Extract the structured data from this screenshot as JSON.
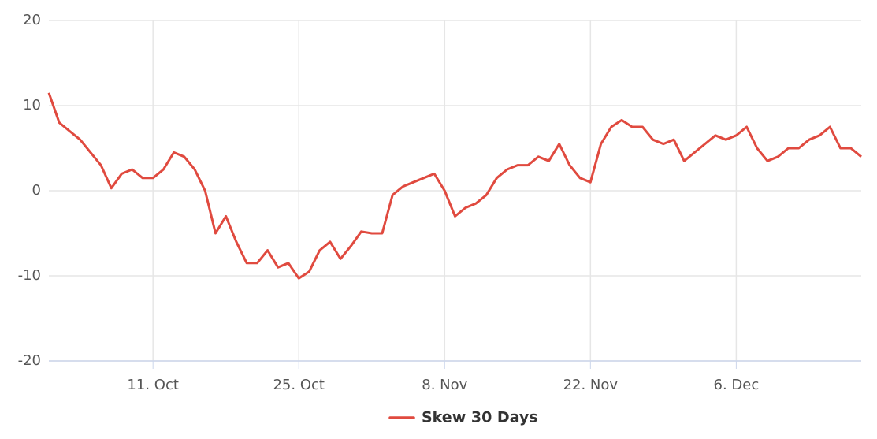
{
  "chart_data": {
    "type": "line",
    "categories": [
      null,
      null,
      null,
      null,
      null,
      null,
      null,
      null,
      null,
      null,
      "11. Oct",
      null,
      null,
      null,
      null,
      null,
      null,
      null,
      null,
      null,
      null,
      null,
      null,
      null,
      "25. Oct",
      null,
      null,
      null,
      null,
      null,
      null,
      null,
      null,
      null,
      null,
      null,
      null,
      null,
      "8. Nov",
      null,
      null,
      null,
      null,
      null,
      null,
      null,
      null,
      null,
      null,
      null,
      null,
      null,
      "22. Nov",
      null,
      null,
      null,
      null,
      null,
      null,
      null,
      null,
      null,
      null,
      null,
      null,
      null,
      "6. Dec",
      null,
      null,
      null,
      null,
      null,
      null,
      null,
      null,
      null,
      null,
      null,
      null
    ],
    "series": [
      {
        "name": "Skew 30 Days",
        "color": "#e04a3f",
        "values": [
          11.5,
          8,
          7,
          6,
          4.5,
          3,
          0.3,
          2,
          2.5,
          1.5,
          1.5,
          2.5,
          4.5,
          4,
          2.5,
          0,
          -5,
          -3,
          -6,
          -8.5,
          -8.5,
          -7,
          -9,
          -8.5,
          -10.3,
          -9.5,
          -7,
          -6,
          -8,
          -6.5,
          -4.8,
          -5,
          -5,
          -0.5,
          0.5,
          1,
          1.5,
          2,
          0,
          -3,
          -2,
          -1.5,
          -0.5,
          1.5,
          2.5,
          3,
          3,
          4,
          3.5,
          5.5,
          3,
          1.5,
          1,
          5.5,
          7.5,
          8.3,
          7.5,
          7.5,
          6,
          5.5,
          6,
          3.5,
          4.5,
          5.5,
          6.5,
          6,
          6.5,
          7.5,
          5,
          3.5,
          4,
          5,
          5,
          6,
          6.5,
          7.5,
          5,
          5,
          4
        ]
      }
    ],
    "ylim": [
      -20,
      20
    ],
    "yticks": [
      -20,
      -10,
      0,
      10,
      20
    ],
    "grid": true
  }
}
